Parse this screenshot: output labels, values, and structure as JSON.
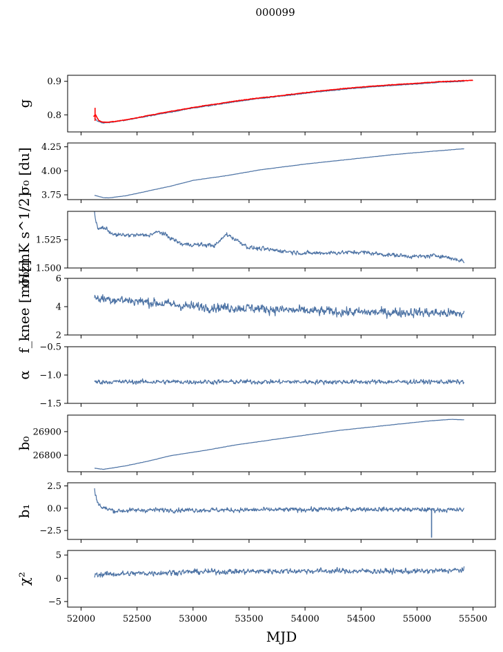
{
  "chart_data": {
    "type": "line",
    "title": "000099",
    "xlabel": "MJD",
    "xlim": [
      51880,
      55700
    ],
    "xticks": [
      52000,
      52500,
      53000,
      53500,
      54000,
      54500,
      55000,
      55500
    ],
    "xtick_labels": [
      "52000",
      "52500",
      "53000",
      "53500",
      "54000",
      "54500",
      "55000",
      "55500"
    ],
    "line_color": "#4c72a4",
    "highlight_color": "#ff0000",
    "panels": [
      {
        "ylabel": "g",
        "ylim": [
          0.749,
          0.918
        ],
        "yticks": [
          0.8,
          0.9
        ],
        "ytick_labels": [
          "0.8",
          "0.9"
        ],
        "series": [
          {
            "name": "g (blue)",
            "style": "line",
            "x_start": 52120,
            "x_end": 55420,
            "knots": [
              [
                52120,
                0.79
              ],
              [
                52150,
                0.78
              ],
              [
                52200,
                0.776
              ],
              [
                52250,
                0.777
              ],
              [
                52400,
                0.784
              ],
              [
                52600,
                0.796
              ],
              [
                52800,
                0.808
              ],
              [
                53000,
                0.82
              ],
              [
                53200,
                0.83
              ],
              [
                53500,
                0.845
              ],
              [
                53800,
                0.856
              ],
              [
                54100,
                0.868
              ],
              [
                54400,
                0.878
              ],
              [
                54700,
                0.886
              ],
              [
                55000,
                0.892
              ],
              [
                55200,
                0.897
              ],
              [
                55420,
                0.9
              ]
            ],
            "noise": 0.0015
          },
          {
            "name": "g (red)",
            "style": "line-highlight",
            "x_start": 52110,
            "x_end": 55500,
            "knots": [
              [
                52110,
                0.795
              ],
              [
                52130,
                0.8
              ],
              [
                52160,
                0.782
              ],
              [
                52200,
                0.778
              ],
              [
                52250,
                0.778
              ],
              [
                52400,
                0.785
              ],
              [
                52600,
                0.798
              ],
              [
                52800,
                0.81
              ],
              [
                53000,
                0.822
              ],
              [
                53200,
                0.832
              ],
              [
                53500,
                0.847
              ],
              [
                53800,
                0.858
              ],
              [
                54100,
                0.87
              ],
              [
                54400,
                0.88
              ],
              [
                54700,
                0.888
              ],
              [
                55000,
                0.894
              ],
              [
                55200,
                0.899
              ],
              [
                55500,
                0.903
              ]
            ],
            "noise": 0.0012,
            "spike": [
              52125,
              0.782,
              0.821
            ]
          }
        ]
      },
      {
        "ylabel": "σ₀ [du]",
        "ylim": [
          3.7,
          4.29
        ],
        "yticks": [
          3.75,
          4.0,
          4.25
        ],
        "ytick_labels": [
          "3.75",
          "4.00",
          "4.25"
        ],
        "series": [
          {
            "name": "sigma0 du",
            "style": "line",
            "x_start": 52120,
            "x_end": 55420,
            "knots": [
              [
                52120,
                3.745
              ],
              [
                52200,
                3.72
              ],
              [
                52250,
                3.718
              ],
              [
                52400,
                3.74
              ],
              [
                52600,
                3.79
              ],
              [
                52800,
                3.84
              ],
              [
                53000,
                3.9
              ],
              [
                53300,
                3.95
              ],
              [
                53600,
                4.01
              ],
              [
                54000,
                4.07
              ],
              [
                54400,
                4.12
              ],
              [
                54800,
                4.17
              ],
              [
                55100,
                4.2
              ],
              [
                55420,
                4.23
              ]
            ],
            "noise": 0.002
          }
        ]
      },
      {
        "ylabel": "σ₀[mK s^1/2]",
        "ylim": [
          1.5,
          1.55
        ],
        "yticks": [
          1.5,
          1.525
        ],
        "ytick_labels": [
          "1.500",
          "1.525"
        ],
        "series": [
          {
            "name": "sigma0 mK",
            "style": "line",
            "x_start": 52120,
            "x_end": 55420,
            "knots": [
              [
                52120,
                1.548
              ],
              [
                52150,
                1.534
              ],
              [
                52200,
                1.536
              ],
              [
                52300,
                1.529
              ],
              [
                52600,
                1.529
              ],
              [
                52700,
                1.532
              ],
              [
                52900,
                1.521
              ],
              [
                53200,
                1.52
              ],
              [
                53300,
                1.53
              ],
              [
                53500,
                1.518
              ],
              [
                54000,
                1.513
              ],
              [
                54500,
                1.514
              ],
              [
                54700,
                1.512
              ],
              [
                55000,
                1.51
              ],
              [
                55200,
                1.511
              ],
              [
                55420,
                1.506
              ]
            ],
            "noise": 0.0025
          }
        ]
      },
      {
        "ylabel": "f_knee [mHz]",
        "ylim": [
          2,
          6
        ],
        "yticks": [
          2,
          4,
          6
        ],
        "ytick_labels": [
          "2",
          "4",
          "6"
        ],
        "series": [
          {
            "name": "f_knee",
            "style": "line",
            "x_start": 52120,
            "x_end": 55420,
            "knots": [
              [
                52120,
                4.6
              ],
              [
                52500,
                4.4
              ],
              [
                53000,
                4.0
              ],
              [
                53500,
                3.9
              ],
              [
                54000,
                3.7
              ],
              [
                54500,
                3.6
              ],
              [
                55000,
                3.6
              ],
              [
                55420,
                3.5
              ]
            ],
            "noise": 0.45
          }
        ]
      },
      {
        "ylabel": "α",
        "ylim": [
          -1.5,
          -0.5
        ],
        "yticks": [
          -1.5,
          -1.0,
          -0.5
        ],
        "ytick_labels": [
          "−1.5",
          "−1.0",
          "−0.5"
        ],
        "series": [
          {
            "name": "alpha",
            "style": "line",
            "x_start": 52120,
            "x_end": 55420,
            "knots": [
              [
                52120,
                -1.12
              ],
              [
                55420,
                -1.12
              ]
            ],
            "noise": 0.055
          }
        ]
      },
      {
        "ylabel": "b₀",
        "ylim": [
          26730,
          26970
        ],
        "yticks": [
          26800,
          26900
        ],
        "ytick_labels": [
          "26800",
          "26900"
        ],
        "series": [
          {
            "name": "b0",
            "style": "line",
            "x_start": 52120,
            "x_end": 55420,
            "knots": [
              [
                52120,
                26745
              ],
              [
                52200,
                26740
              ],
              [
                52400,
                26755
              ],
              [
                52600,
                26775
              ],
              [
                52800,
                26798
              ],
              [
                53100,
                26820
              ],
              [
                53400,
                26845
              ],
              [
                53700,
                26865
              ],
              [
                54000,
                26885
              ],
              [
                54300,
                26905
              ],
              [
                54600,
                26920
              ],
              [
                54900,
                26935
              ],
              [
                55100,
                26945
              ],
              [
                55300,
                26952
              ],
              [
                55420,
                26950
              ]
            ],
            "noise": 0.8
          }
        ]
      },
      {
        "ylabel": "b₁",
        "ylim": [
          -3.5,
          2.85
        ],
        "yticks": [
          -2.5,
          0.0,
          2.5
        ],
        "ytick_labels": [
          "−2.5",
          "0.0",
          "2.5"
        ],
        "series": [
          {
            "name": "b1",
            "style": "line",
            "x_start": 52120,
            "x_end": 55420,
            "knots": [
              [
                52120,
                2.2
              ],
              [
                52140,
                0.9
              ],
              [
                52180,
                0.1
              ],
              [
                52300,
                -0.3
              ],
              [
                52600,
                -0.2
              ],
              [
                53500,
                -0.2
              ],
              [
                54500,
                -0.1
              ],
              [
                55420,
                -0.2
              ]
            ],
            "noise": 0.35,
            "spike": [
              55130,
              0.0,
              -3.3
            ]
          }
        ]
      },
      {
        "ylabel": "χ²",
        "ylim": [
          -6.2,
          6.0
        ],
        "yticks": [
          -5,
          0,
          5
        ],
        "ytick_labels": [
          "−5",
          "0",
          "5"
        ],
        "series": [
          {
            "name": "chi2",
            "style": "line",
            "x_start": 52120,
            "x_end": 55420,
            "knots": [
              [
                52120,
                0.8
              ],
              [
                53000,
                1.4
              ],
              [
                54000,
                1.6
              ],
              [
                55000,
                1.5
              ],
              [
                55420,
                1.8
              ]
            ],
            "noise": 0.8
          }
        ]
      }
    ]
  }
}
